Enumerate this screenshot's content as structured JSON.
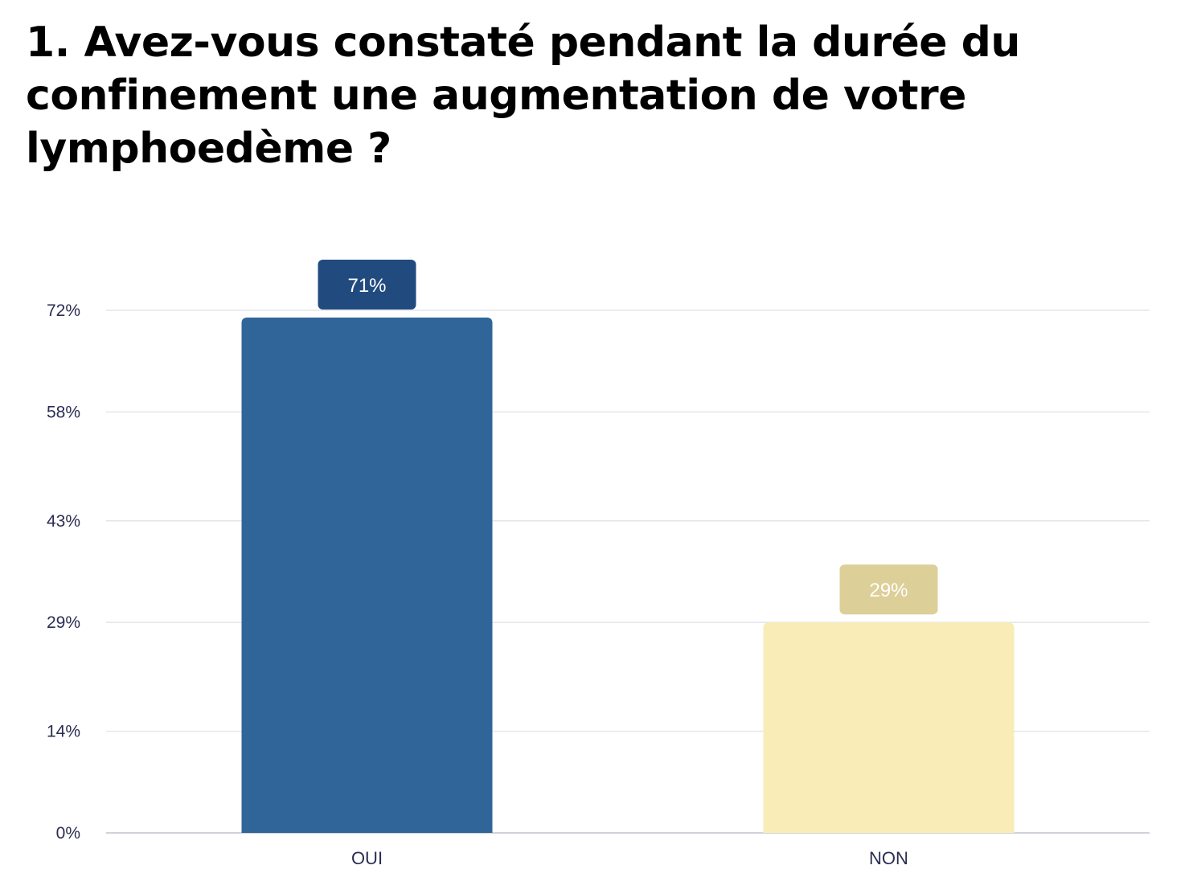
{
  "chart_data": {
    "type": "bar",
    "title": "1. Avez-vous constaté pendant la durée du confinement une augmentation de votre lymphoedème ?",
    "categories": [
      "OUI",
      "NON"
    ],
    "values": [
      71,
      29
    ],
    "data_labels": [
      "71%",
      "29%"
    ],
    "ylim": [
      0,
      72
    ],
    "y_ticks": [
      0,
      14,
      29,
      43,
      58,
      72
    ],
    "y_tick_labels": [
      "0%",
      "14%",
      "29%",
      "43%",
      "58%",
      "72%"
    ],
    "grid": true,
    "legend": "none",
    "bar_colors": [
      "#2f6599",
      "#faecb7"
    ],
    "label_colors": [
      "#214b7f",
      "#ddcf98"
    ],
    "grid_color": "#e4e6ea",
    "axis_color": "#cfd3d9",
    "text_color": "#2b2d52"
  }
}
